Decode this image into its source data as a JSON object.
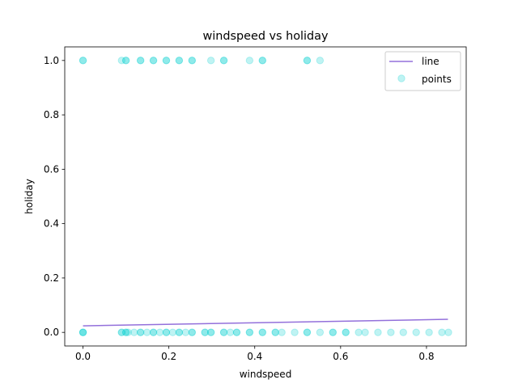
{
  "chart_data": {
    "type": "scatter",
    "title": "windspeed vs holiday",
    "xlabel": "windspeed",
    "ylabel": "holiday",
    "xlim": [
      -0.0425,
      0.8925
    ],
    "ylim": [
      -0.05,
      1.05
    ],
    "xticks": [
      0.0,
      0.2,
      0.4,
      0.6,
      0.8
    ],
    "yticks": [
      0.0,
      0.2,
      0.4,
      0.6,
      0.8,
      1.0
    ],
    "xtick_labels": [
      "0.0",
      "0.2",
      "0.4",
      "0.6",
      "0.8"
    ],
    "ytick_labels": [
      "0.0",
      "0.2",
      "0.4",
      "0.6",
      "0.8",
      "1.0"
    ],
    "grid": false,
    "legend": {
      "position": "top-right",
      "entries": [
        {
          "label": "line",
          "kind": "line",
          "color": "#9370db"
        },
        {
          "label": "points",
          "kind": "marker",
          "color": "#00ced1"
        }
      ]
    },
    "series": [
      {
        "name": "line",
        "kind": "line",
        "color": "#9370db",
        "x": [
          0.0,
          0.85
        ],
        "y": [
          0.024,
          0.048
        ]
      },
      {
        "name": "points",
        "kind": "scatter",
        "color": "#00ced1",
        "opacity": 0.25,
        "y_group_1": {
          "y": 1.0,
          "x": [
            0.0,
            0.0,
            0.09,
            0.1,
            0.1,
            0.134,
            0.134,
            0.164,
            0.164,
            0.194,
            0.194,
            0.224,
            0.224,
            0.254,
            0.254,
            0.298,
            0.328,
            0.328,
            0.388,
            0.418,
            0.418,
            0.522,
            0.522,
            0.552
          ]
        },
        "y_group_0": {
          "y": 0.0,
          "x": [
            0.0,
            0.0,
            0.0,
            0.09,
            0.09,
            0.1,
            0.1,
            0.105,
            0.119,
            0.134,
            0.134,
            0.149,
            0.164,
            0.164,
            0.179,
            0.194,
            0.194,
            0.209,
            0.224,
            0.224,
            0.239,
            0.254,
            0.254,
            0.284,
            0.284,
            0.298,
            0.298,
            0.328,
            0.328,
            0.343,
            0.358,
            0.358,
            0.388,
            0.388,
            0.418,
            0.418,
            0.448,
            0.448,
            0.463,
            0.493,
            0.522,
            0.522,
            0.552,
            0.582,
            0.582,
            0.612,
            0.612,
            0.642,
            0.657,
            0.687,
            0.717,
            0.746,
            0.776,
            0.806,
            0.836,
            0.851
          ]
        }
      }
    ]
  }
}
